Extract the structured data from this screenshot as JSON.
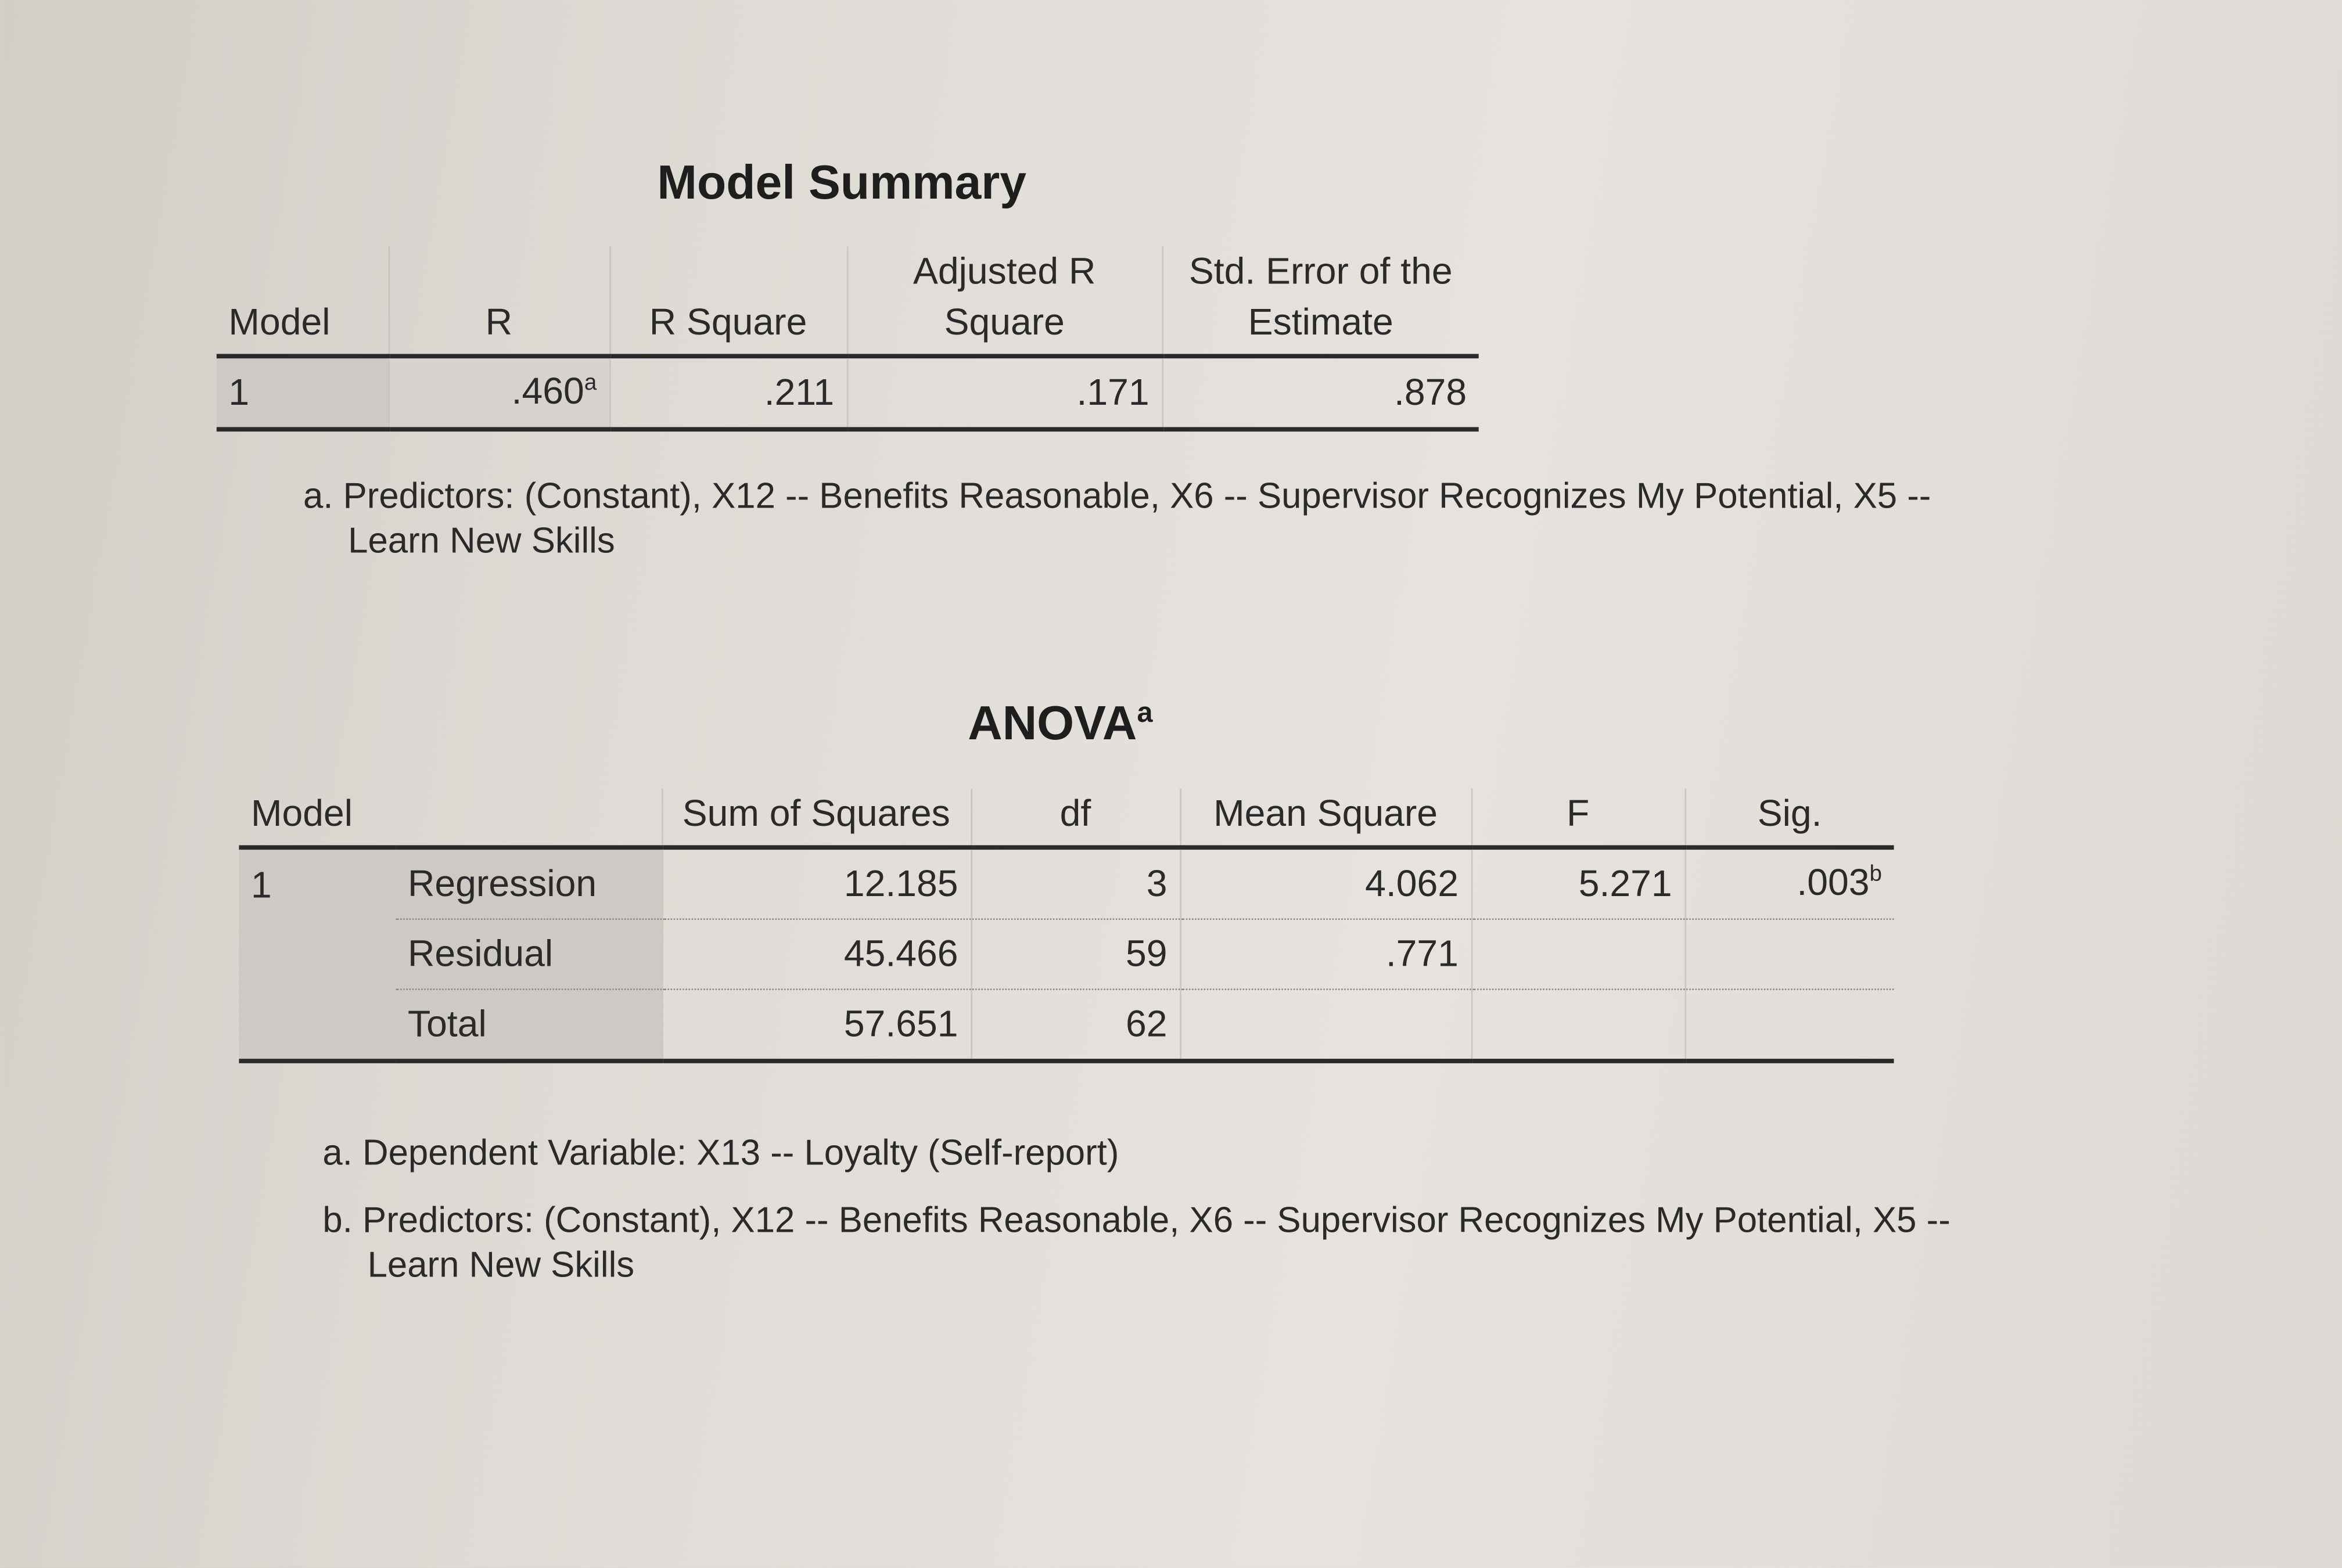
{
  "model_summary": {
    "title": "Model Summary",
    "headers": [
      "Model",
      "R",
      "R Square",
      "Adjusted R Square",
      "Std. Error of the Estimate"
    ],
    "rows": [
      {
        "model": "1",
        "r": ".460",
        "r_sup": "a",
        "r_square": ".211",
        "adj_r_square": ".171",
        "std_error": ".878"
      }
    ],
    "footnotes": {
      "a_line1": "a. Predictors: (Constant), X12 -- Benefits Reasonable, X6 -- Supervisor Recognizes My Potential, X5 --",
      "a_line2": "Learn New Skills"
    }
  },
  "anova": {
    "title": "ANOVA",
    "title_sup": "a",
    "headers": [
      "Model",
      "Sum of Squares",
      "df",
      "Mean Square",
      "F",
      "Sig."
    ],
    "model": "1",
    "rows": [
      {
        "label": "Regression",
        "ss": "12.185",
        "df": "3",
        "ms": "4.062",
        "f": "5.271",
        "sig": ".003",
        "sig_sup": "b"
      },
      {
        "label": "Residual",
        "ss": "45.466",
        "df": "59",
        "ms": ".771"
      },
      {
        "label": "Total",
        "ss": "57.651",
        "df": "62"
      }
    ],
    "footnotes": {
      "a": "a. Dependent Variable: X13 -- Loyalty (Self-report)",
      "b_line1": "b. Predictors: (Constant), X12 -- Benefits Reasonable, X6 -- Supervisor Recognizes My Potential, X5 --",
      "b_line2": "Learn New Skills"
    }
  }
}
